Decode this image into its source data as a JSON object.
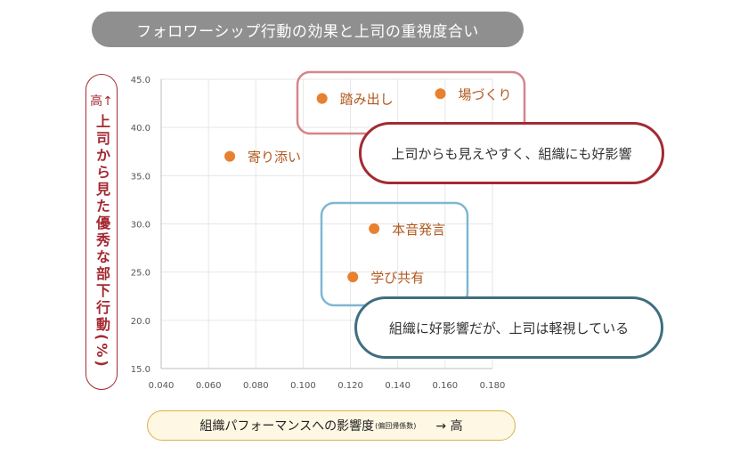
{
  "title": "フォロワーシップ行動の効果と上司の重視度合い",
  "ylabel_top": "高↑",
  "ylabel": "上司から見た優秀な部下行動(%)",
  "xlabel": {
    "main": "組織パフォーマンスへの影響度",
    "note": "(偏回帰係数)",
    "high": "→ 高"
  },
  "callouts": {
    "top": "上司からも見えやすく、組織にも好影響",
    "bottom": "組織に好影響だが、上司は軽視している"
  },
  "colors": {
    "point": "#e8812f",
    "label": "#b25a1f",
    "red_frame": "#a42a32",
    "blue_frame": "#3f6e80"
  },
  "chart_data": {
    "type": "scatter",
    "xlim": [
      0.04,
      0.18
    ],
    "ylim": [
      15.0,
      45.0
    ],
    "xticks": [
      "0.040",
      "0.060",
      "0.080",
      "0.100",
      "0.120",
      "0.140",
      "0.160",
      "0.180"
    ],
    "yticks": [
      "15.0",
      "20.0",
      "25.0",
      "30.0",
      "35.0",
      "40.0",
      "45.0"
    ],
    "grid": true,
    "points": [
      {
        "label": "寄り添い",
        "x": 0.069,
        "y": 37.0
      },
      {
        "label": "踏み出し",
        "x": 0.108,
        "y": 43.0
      },
      {
        "label": "場づくり",
        "x": 0.158,
        "y": 43.5
      },
      {
        "label": "本音発言",
        "x": 0.13,
        "y": 29.5
      },
      {
        "label": "学び共有",
        "x": 0.121,
        "y": 24.5
      }
    ]
  }
}
